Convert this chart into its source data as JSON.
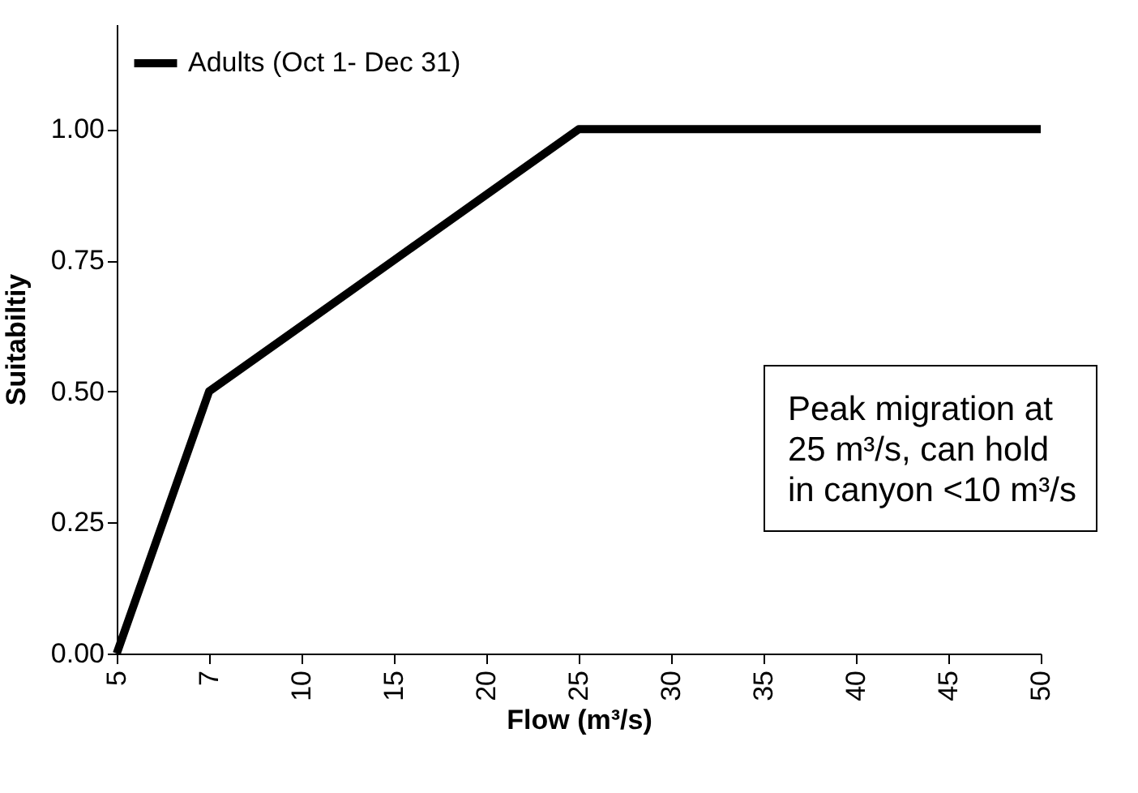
{
  "chart_data": {
    "type": "line",
    "xlabel": "Flow (m³/s)",
    "ylabel": "Suitabiltiy",
    "categories": [
      "5",
      "7",
      "10",
      "15",
      "20",
      "25",
      "30",
      "35",
      "40",
      "45",
      "50"
    ],
    "series": [
      {
        "name": "Adults (Oct 1- Dec 31)",
        "color": "#000000",
        "values": [
          0,
          0.5,
          0.625,
          0.75,
          0.875,
          1,
          1,
          1,
          1,
          1,
          1
        ]
      }
    ],
    "ylim": [
      0,
      1.2
    ],
    "yticks": [
      {
        "value": 0,
        "label": "0.00"
      },
      {
        "value": 0.25,
        "label": "0.25"
      },
      {
        "value": 0.5,
        "label": "0.50"
      },
      {
        "value": 0.75,
        "label": "0.75"
      },
      {
        "value": 1,
        "label": "1.00"
      }
    ],
    "grid": false,
    "legend": "top left",
    "marker": "none",
    "line_style": "solid",
    "annotations": [
      "Peak migration at 25 m³/s, can hold in canyon <10 m³/s"
    ]
  }
}
